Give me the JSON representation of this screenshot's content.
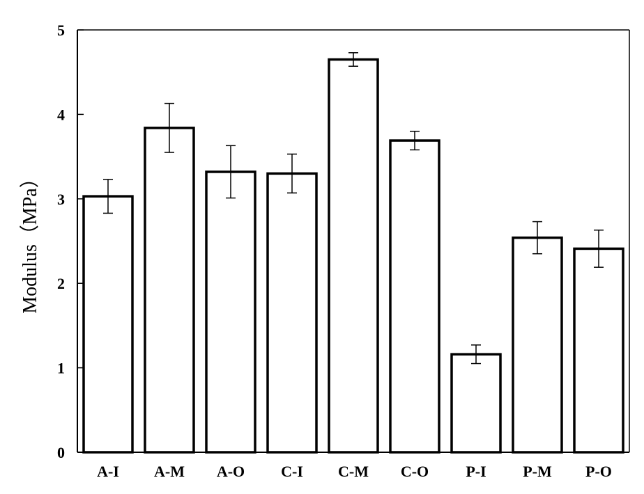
{
  "chart_data": {
    "type": "bar",
    "title": "",
    "xlabel": "",
    "ylabel": "Modulus（MPa）",
    "ylim": [
      0,
      5
    ],
    "yticks": [
      "0",
      "1",
      "2",
      "3",
      "4",
      "5"
    ],
    "grid": false,
    "legend": "none",
    "categories": [
      "A-I",
      "A-M",
      "A-O",
      "C-I",
      "C-M",
      "C-O",
      "P-I",
      "P-M",
      "P-O"
    ],
    "values": [
      3.03,
      3.84,
      3.32,
      3.3,
      4.65,
      3.69,
      1.16,
      2.54,
      2.41
    ],
    "error": [
      0.2,
      0.29,
      0.31,
      0.23,
      0.08,
      0.11,
      0.11,
      0.19,
      0.22
    ],
    "colors": {
      "bar_fill": "#ffffff",
      "bar_stroke": "#000000",
      "axis": "#000000"
    }
  }
}
